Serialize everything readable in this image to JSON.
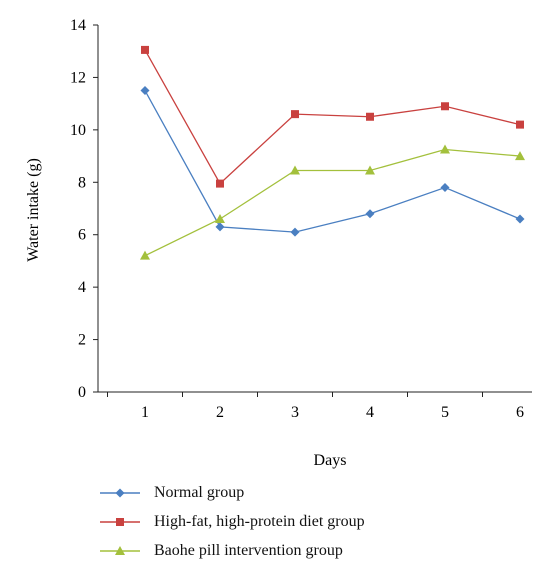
{
  "chart_data": {
    "type": "line",
    "xlabel": "Days",
    "ylabel": "Water intake (g)",
    "categories": [
      "1",
      "2",
      "3",
      "4",
      "5",
      "6"
    ],
    "x": [
      1,
      2,
      3,
      4,
      5,
      6
    ],
    "ylim": [
      0,
      14
    ],
    "yticks": [
      "0",
      "2",
      "4",
      "6",
      "8",
      "10",
      "12",
      "14"
    ],
    "grid": false,
    "legend_position": "bottom",
    "series": [
      {
        "name": "Normal group",
        "color": "#4a7fc1",
        "marker": "diamond",
        "values": [
          11.5,
          6.3,
          6.1,
          6.8,
          7.8,
          6.6
        ]
      },
      {
        "name": "High-fat, high-protein diet group",
        "color": "#c9413f",
        "marker": "square",
        "values": [
          13.05,
          7.95,
          10.6,
          10.5,
          10.9,
          10.2
        ]
      },
      {
        "name": "Baohe pill intervention group",
        "color": "#a3c03c",
        "marker": "triangle",
        "values": [
          5.2,
          6.6,
          8.45,
          8.45,
          9.25,
          9.0
        ]
      }
    ]
  }
}
